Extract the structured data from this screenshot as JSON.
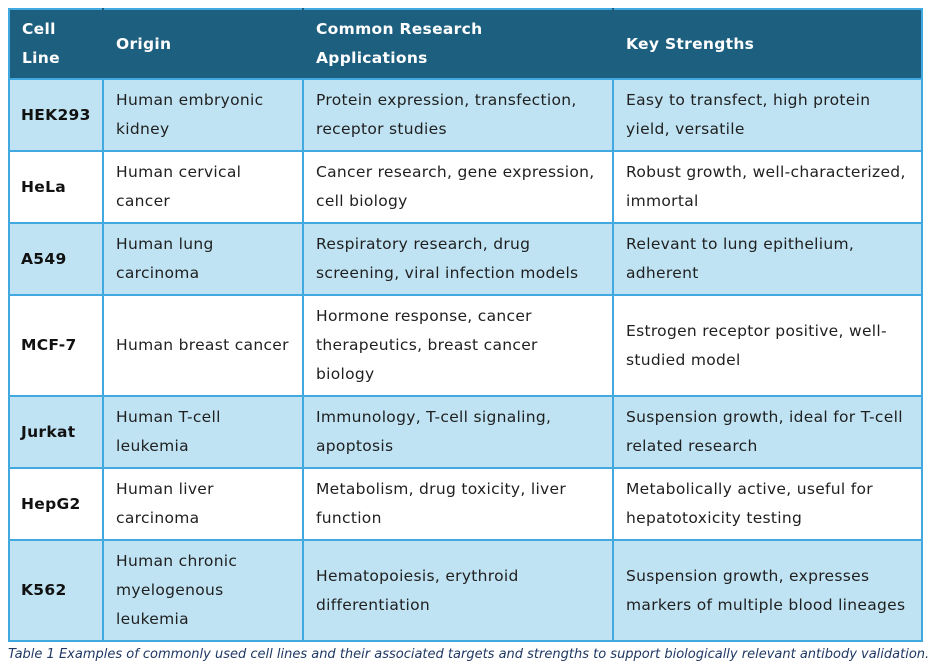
{
  "table": {
    "columns": [
      {
        "key": "cell_line",
        "label": "Cell Line"
      },
      {
        "key": "origin",
        "label": "Origin"
      },
      {
        "key": "applications",
        "label": "Common Research Applications"
      },
      {
        "key": "strengths",
        "label": "Key Strengths"
      }
    ],
    "rows": [
      {
        "cell_line": "HEK293",
        "origin": "Human embryonic kidney",
        "applications": "Protein expression, transfection, receptor studies",
        "strengths": "Easy to transfect, high protein yield, versatile"
      },
      {
        "cell_line": "HeLa",
        "origin": "Human cervical cancer",
        "applications": "Cancer research, gene expression, cell biology",
        "strengths": "Robust growth, well-characterized, immortal"
      },
      {
        "cell_line": "A549",
        "origin": "Human lung carcinoma",
        "applications": "Respiratory research, drug screening, viral infection models",
        "strengths": "Relevant to lung epithelium, adherent"
      },
      {
        "cell_line": "MCF-7",
        "origin": "Human breast cancer",
        "applications": "Hormone response, cancer therapeutics, breast cancer biology",
        "strengths": "Estrogen receptor positive, well-studied model"
      },
      {
        "cell_line": "Jurkat",
        "origin": "Human T-cell leukemia",
        "applications": "Immunology, T-cell signaling, apoptosis",
        "strengths": "Suspension growth, ideal for T-cell related research"
      },
      {
        "cell_line": "HepG2",
        "origin": "Human liver carcinoma",
        "applications": "Metabolism, drug toxicity, liver function",
        "strengths": "Metabolically active, useful for hepatotoxicity testing"
      },
      {
        "cell_line": "K562",
        "origin": "Human chronic myelogenous leukemia",
        "applications": "Hematopoiesis, erythroid differentiation",
        "strengths": "Suspension growth, expresses markers of multiple blood lineages"
      }
    ]
  },
  "caption": "Table 1 Examples of commonly used cell lines and their associated targets and strengths to support biologically relevant antibody validation.",
  "colors": {
    "header_bg": "#1D5F7F",
    "header_text": "#FFFFFF",
    "row_alt_bg": "#BFE3F3",
    "row_bg": "#FFFFFF",
    "border": "#41A9E0",
    "body_text": "#1F1F1F",
    "caption_text": "#1F3864"
  }
}
